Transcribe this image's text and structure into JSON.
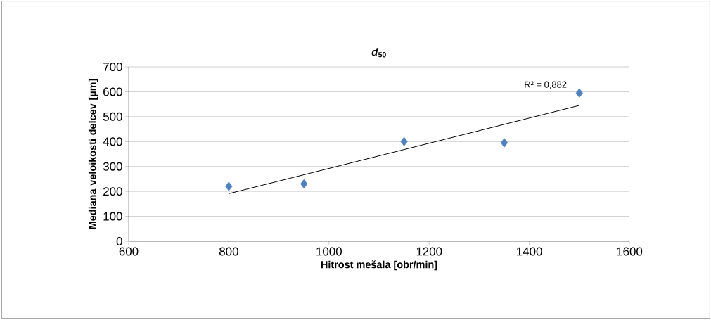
{
  "chart_data": {
    "type": "scatter",
    "title": "*d*$_{50}$",
    "xlabel": "Hitrost mešala [obr/min]",
    "ylabel": "Mediana veloikosti delcev [µm]",
    "xlim": [
      600,
      1600
    ],
    "ylim": [
      0,
      700
    ],
    "xticks": [
      600,
      800,
      1000,
      1200,
      1400,
      1600
    ],
    "yticks": [
      0,
      100,
      200,
      300,
      400,
      500,
      600,
      700
    ],
    "grid": "y",
    "marker": "diamond",
    "annotations": [
      "R² = 0,882"
    ],
    "series": [
      {
        "color": "#4f81bd",
        "x": [
          800,
          950,
          1150,
          1350,
          1500
        ],
        "values": [
          220,
          230,
          400,
          395,
          595
        ]
      },
      {
        "type": "line",
        "color": "#000000",
        "x": [
          800,
          1500
        ],
        "values": [
          191,
          545
        ],
        "marker": "none",
        "line_style": "solid"
      }
    ]
  }
}
